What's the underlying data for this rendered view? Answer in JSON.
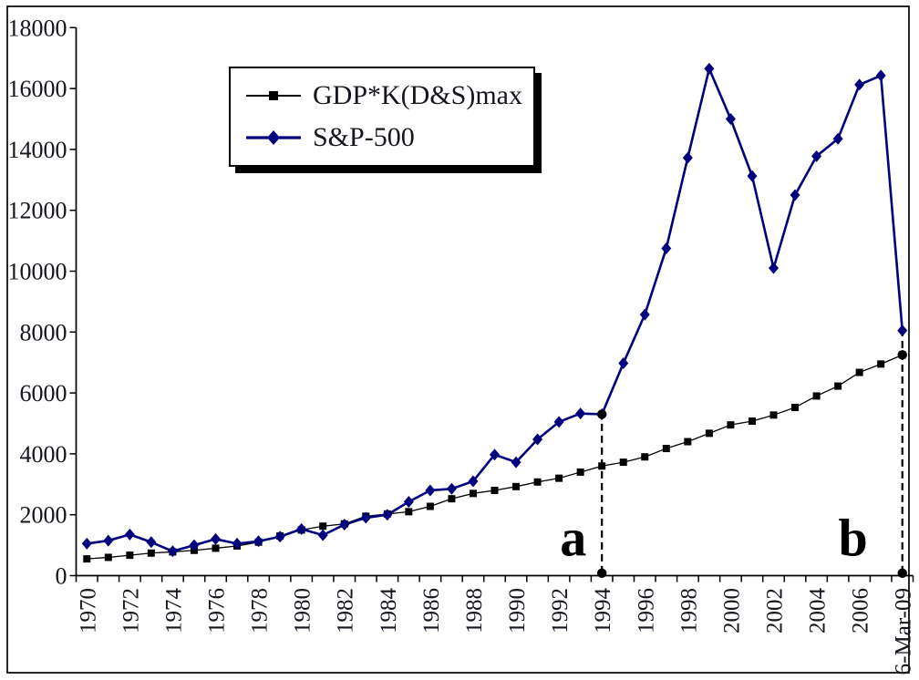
{
  "chart_data": {
    "type": "line",
    "title": "",
    "xlabel": "",
    "ylabel": "",
    "grid": false,
    "legend_position": "top-left-inside",
    "ylim": [
      0,
      18000
    ],
    "y_ticks": [
      0,
      2000,
      4000,
      6000,
      8000,
      10000,
      12000,
      14000,
      16000,
      18000
    ],
    "x_categories": [
      "1970",
      "1971",
      "1972",
      "1973",
      "1974",
      "1975",
      "1976",
      "1977",
      "1978",
      "1979",
      "1980",
      "1981",
      "1982",
      "1983",
      "1984",
      "1985",
      "1986",
      "1987",
      "1988",
      "1989",
      "1990",
      "1991",
      "1992",
      "1993",
      "1994",
      "1995",
      "1996",
      "1997",
      "1998",
      "1999",
      "2000",
      "2001",
      "2002",
      "2003",
      "2004",
      "2005",
      "2006",
      "2007",
      "6-Mar-09"
    ],
    "x_label_every": 2,
    "series": [
      {
        "name": "GDP*K(D&S)max",
        "marker": "square",
        "color": "#000000",
        "line_width": 1.3,
        "values": [
          550,
          600,
          670,
          740,
          780,
          830,
          900,
          975,
          1100,
          1300,
          1500,
          1625,
          1700,
          1950,
          2025,
          2100,
          2275,
          2525,
          2700,
          2800,
          2925,
          3075,
          3200,
          3400,
          3600,
          3725,
          3900,
          4175,
          4400,
          4675,
          4950,
          5075,
          5275,
          5525,
          5900,
          6225,
          6675,
          6950,
          7250
        ]
      },
      {
        "name": "S&P-500",
        "marker": "diamond",
        "color": "#00007e",
        "line_width": 2.6,
        "values": [
          1050,
          1150,
          1350,
          1100,
          800,
          1000,
          1200,
          1050,
          1130,
          1280,
          1530,
          1330,
          1675,
          1900,
          2000,
          2425,
          2800,
          2850,
          3100,
          3975,
          3725,
          4475,
          5050,
          5325,
          5300,
          6975,
          8575,
          10750,
          13725,
          16650,
          15000,
          13125,
          10100,
          12500,
          13775,
          14350,
          16125,
          16425,
          8050
        ]
      }
    ],
    "annotations": [
      {
        "label": "a",
        "x_category": "1994",
        "x_index": 24,
        "line_top_value": 5300,
        "dot_values": [
          80,
          5300
        ]
      },
      {
        "label": "b",
        "x_category": "6-Mar-09",
        "x_index": 38,
        "line_top_value": 8050,
        "dot_values": [
          80,
          7250
        ]
      }
    ]
  },
  "colors": {
    "background": "#ffffff",
    "border": "#000000",
    "axis": "#000000",
    "text": "#15151d",
    "gdp_series": "#000000",
    "sp500_series": "#00007e"
  }
}
